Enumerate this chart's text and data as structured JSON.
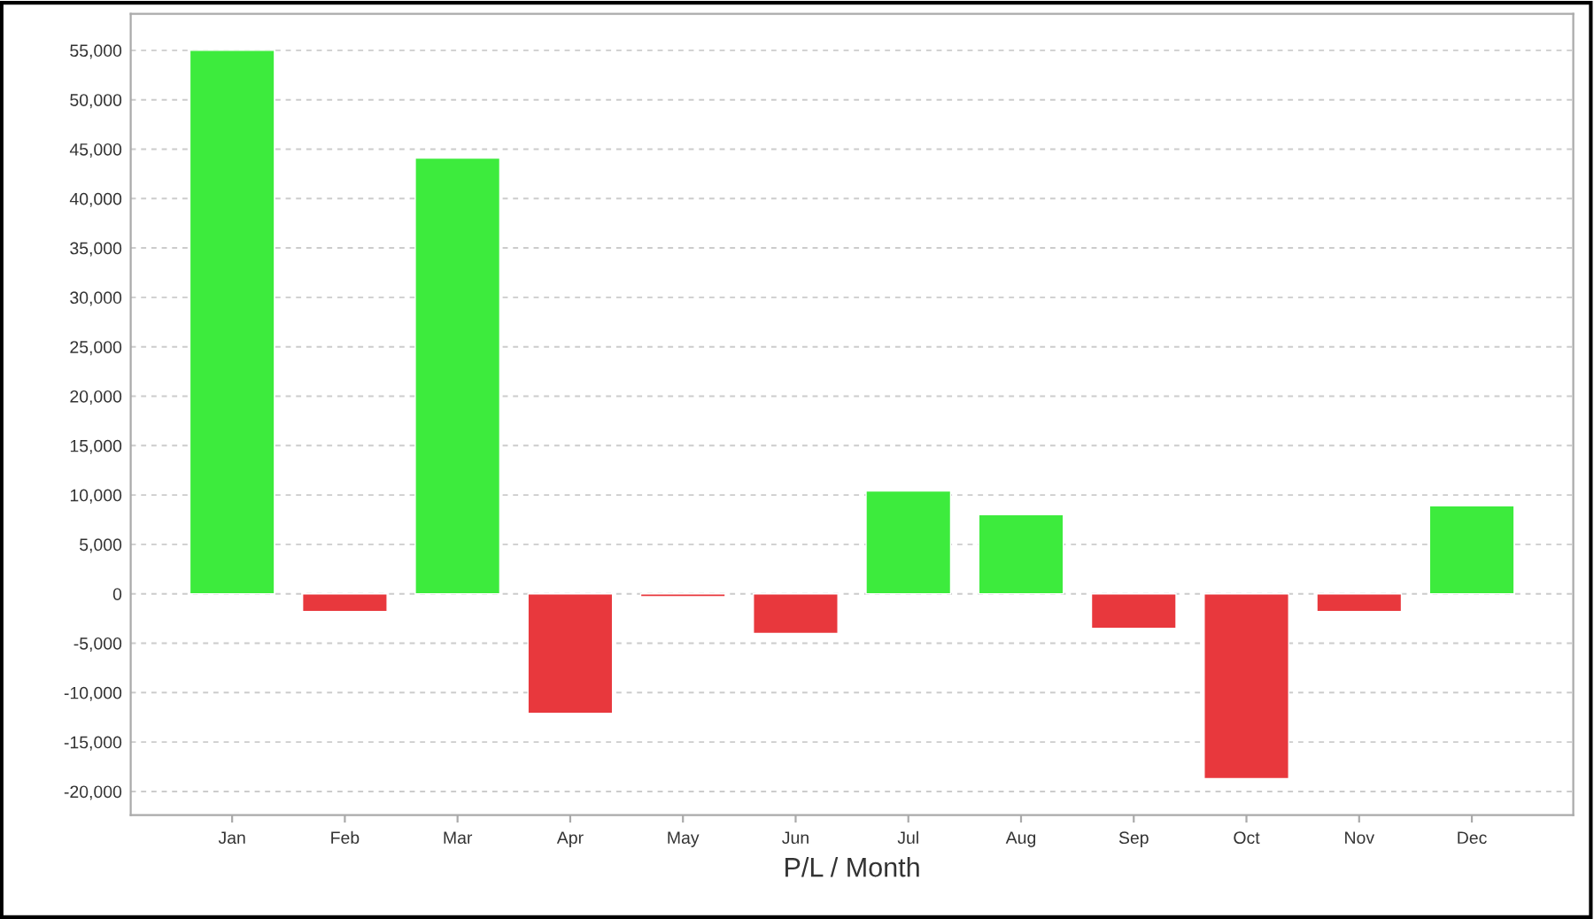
{
  "chart_data": {
    "type": "bar",
    "xlabel": "P/L / Month",
    "categories": [
      "Jan",
      "Feb",
      "Mar",
      "Apr",
      "May",
      "Jun",
      "Jul",
      "Aug",
      "Sep",
      "Oct",
      "Nov",
      "Dec"
    ],
    "values": [
      55000,
      -1800,
      44100,
      -12100,
      -300,
      -4000,
      10400,
      8000,
      -3500,
      -18700,
      -1800,
      8900
    ],
    "colors": [
      "#3deb3d",
      "#e8383d",
      "#3deb3d",
      "#e8383d",
      "#e8383d",
      "#e8383d",
      "#3deb3d",
      "#3deb3d",
      "#e8383d",
      "#e8383d",
      "#e8383d",
      "#3deb3d"
    ],
    "ylim": [
      -22400,
      58700
    ],
    "yticks": [
      {
        "value": -20000,
        "label": "-20,000"
      },
      {
        "value": -15000,
        "label": "-15,000"
      },
      {
        "value": -10000,
        "label": "-10,000"
      },
      {
        "value": -5000,
        "label": "-5,000"
      },
      0,
      {
        "value": 5000,
        "label": "5,000"
      },
      {
        "value": 10000,
        "label": "10,000"
      },
      {
        "value": 15000,
        "label": "15,000"
      },
      {
        "value": 20000,
        "label": "20,000"
      },
      {
        "value": 25000,
        "label": "25,000"
      },
      {
        "value": 30000,
        "label": "30,000"
      },
      {
        "value": 35000,
        "label": "35,000"
      },
      {
        "value": 40000,
        "label": "40,000"
      },
      {
        "value": 45000,
        "label": "45,000"
      },
      {
        "value": 50000,
        "label": "50,000"
      },
      {
        "value": 55000,
        "label": "55,000"
      }
    ],
    "grid": "y",
    "legend": false
  }
}
